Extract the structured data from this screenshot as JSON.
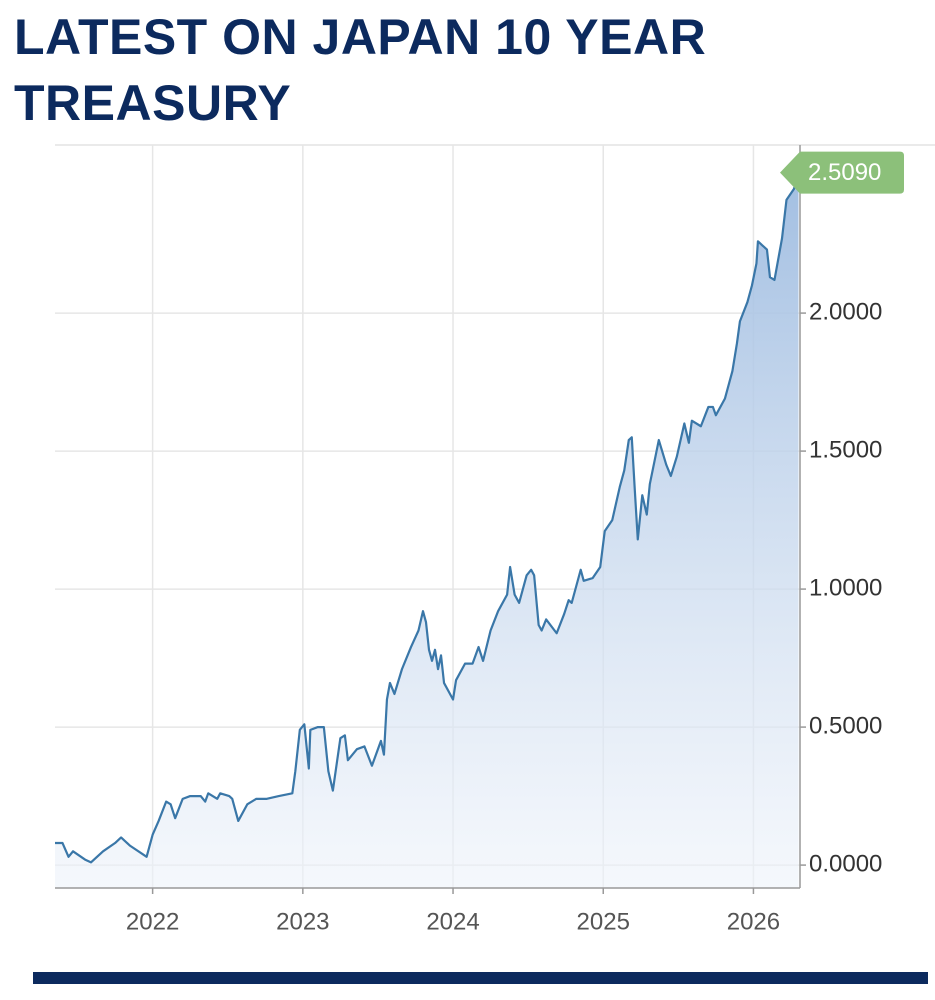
{
  "chart_data": {
    "type": "area",
    "title": "LATEST ON JAPAN 10 YEAR TREASURY",
    "x": [
      2021.35,
      2021.4,
      2021.44,
      2021.47,
      2021.55,
      2021.59,
      2021.67,
      2021.75,
      2021.79,
      2021.85,
      2021.96,
      2022.0,
      2022.04,
      2022.09,
      2022.12,
      2022.15,
      2022.2,
      2022.25,
      2022.32,
      2022.35,
      2022.37,
      2022.43,
      2022.45,
      2022.51,
      2022.53,
      2022.57,
      2022.63,
      2022.69,
      2022.76,
      2022.84,
      2022.93,
      2022.95,
      2022.98,
      2023.01,
      2023.04,
      2023.05,
      2023.1,
      2023.14,
      2023.17,
      2023.2,
      2023.25,
      2023.28,
      2023.3,
      2023.36,
      2023.41,
      2023.46,
      2023.52,
      2023.54,
      2023.56,
      2023.58,
      2023.61,
      2023.66,
      2023.72,
      2023.77,
      2023.8,
      2023.82,
      2023.84,
      2023.86,
      2023.88,
      2023.9,
      2023.92,
      2023.94,
      2024.0,
      2024.02,
      2024.08,
      2024.13,
      2024.17,
      2024.2,
      2024.25,
      2024.3,
      2024.36,
      2024.38,
      2024.41,
      2024.44,
      2024.49,
      2024.52,
      2024.54,
      2024.57,
      2024.59,
      2024.62,
      2024.69,
      2024.74,
      2024.77,
      2024.79,
      2024.85,
      2024.87,
      2024.93,
      2024.98,
      2025.01,
      2025.06,
      2025.11,
      2025.14,
      2025.17,
      2025.19,
      2025.21,
      2025.23,
      2025.26,
      2025.29,
      2025.31,
      2025.37,
      2025.42,
      2025.45,
      2025.49,
      2025.54,
      2025.57,
      2025.59,
      2025.65,
      2025.7,
      2025.73,
      2025.75,
      2025.81,
      2025.86,
      2025.89,
      2025.91,
      2025.96,
      2025.99,
      2026.02,
      2026.03,
      2026.09,
      2026.11,
      2026.14,
      2026.19,
      2026.22,
      2026.27,
      2026.3
    ],
    "series": [
      {
        "color": "#3a77a8",
        "values": [
          0.08,
          0.08,
          0.03,
          0.05,
          0.02,
          0.01,
          0.05,
          0.08,
          0.1,
          0.07,
          0.03,
          0.11,
          0.16,
          0.23,
          0.22,
          0.17,
          0.24,
          0.25,
          0.25,
          0.23,
          0.26,
          0.24,
          0.26,
          0.25,
          0.24,
          0.16,
          0.22,
          0.24,
          0.24,
          0.25,
          0.26,
          0.34,
          0.49,
          0.51,
          0.35,
          0.49,
          0.5,
          0.5,
          0.34,
          0.27,
          0.46,
          0.47,
          0.38,
          0.42,
          0.43,
          0.36,
          0.45,
          0.4,
          0.6,
          0.66,
          0.62,
          0.71,
          0.79,
          0.85,
          0.92,
          0.88,
          0.78,
          0.74,
          0.78,
          0.71,
          0.76,
          0.66,
          0.6,
          0.67,
          0.73,
          0.73,
          0.79,
          0.74,
          0.85,
          0.92,
          0.98,
          1.08,
          0.98,
          0.95,
          1.05,
          1.07,
          1.05,
          0.87,
          0.85,
          0.89,
          0.84,
          0.91,
          0.96,
          0.95,
          1.07,
          1.03,
          1.04,
          1.08,
          1.21,
          1.25,
          1.37,
          1.43,
          1.54,
          1.55,
          1.36,
          1.18,
          1.34,
          1.27,
          1.38,
          1.54,
          1.45,
          1.41,
          1.48,
          1.6,
          1.53,
          1.61,
          1.59,
          1.66,
          1.66,
          1.63,
          1.69,
          1.79,
          1.89,
          1.97,
          2.04,
          2.1,
          2.18,
          2.26,
          2.23,
          2.13,
          2.12,
          2.27,
          2.41,
          2.45,
          2.509
        ]
      }
    ],
    "last_value": {
      "value": 2.509,
      "label": "2.5090",
      "color": "#8cc07a"
    },
    "xlim": [
      2021.35,
      2026.31
    ],
    "ylim": [
      -0.083,
      2.609
    ],
    "xticks": [
      2022,
      2023,
      2024,
      2025,
      2026
    ],
    "yticks": [
      {
        "value": 0,
        "label": "0.0000"
      },
      {
        "value": 0.5,
        "label": "0.5000"
      },
      {
        "value": 1,
        "label": "1.0000"
      },
      {
        "value": 1.5,
        "label": "1.5000"
      },
      {
        "value": 2,
        "label": "2.0000"
      }
    ],
    "grid": true
  }
}
